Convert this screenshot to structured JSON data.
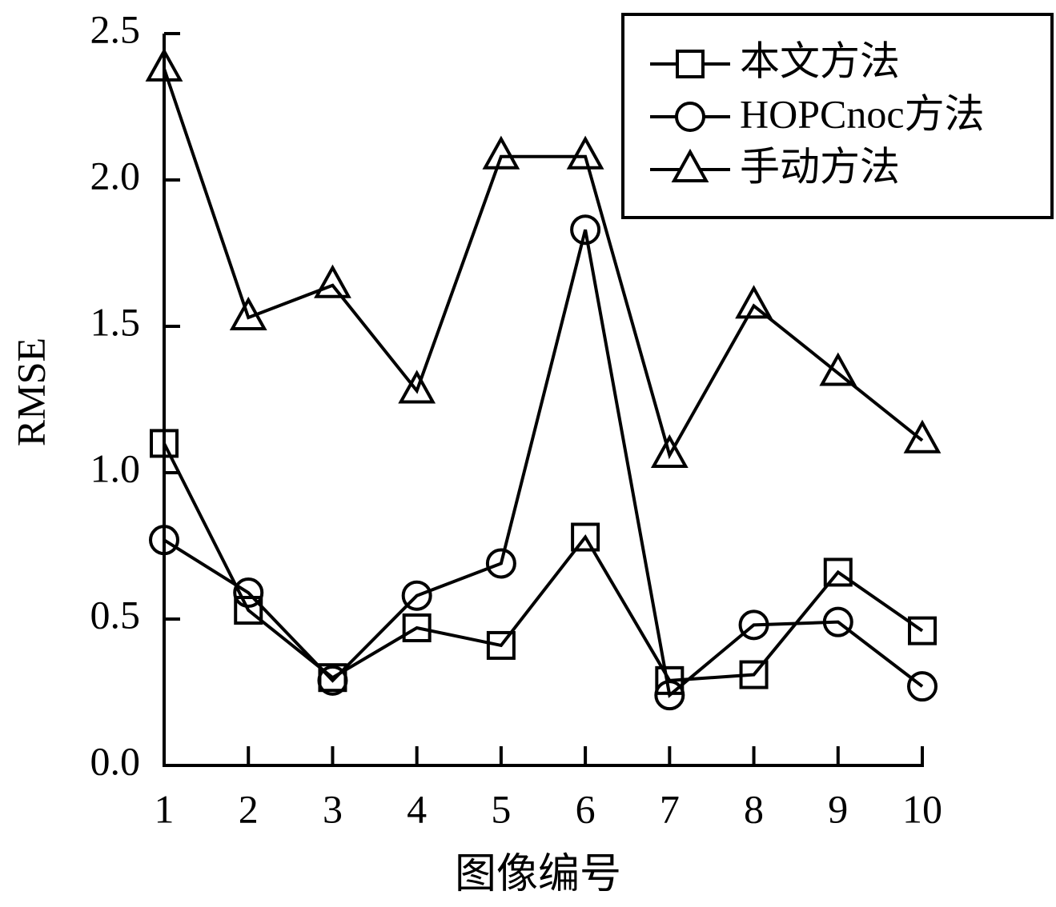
{
  "chart_data": {
    "type": "line",
    "x_label": "图像编号",
    "y_label": "RMSE",
    "x": [
      1,
      2,
      3,
      4,
      5,
      6,
      7,
      8,
      9,
      10
    ],
    "xlim": [
      1,
      10
    ],
    "xticks": [
      1,
      2,
      3,
      4,
      5,
      6,
      7,
      8,
      9,
      10
    ],
    "ylim": [
      0,
      2.5
    ],
    "yticks": [
      {
        "value": 0,
        "label": "0.0"
      },
      0.5,
      {
        "value": 1,
        "label": "1.0"
      },
      1.5,
      {
        "value": 2,
        "label": "2.0"
      },
      2.5
    ],
    "legend": "upper right",
    "series": [
      {
        "name": "本文方法",
        "color": "#000000",
        "marker": "square",
        "values": [
          1.1,
          0.53,
          0.3,
          0.47,
          0.41,
          0.78,
          0.29,
          0.31,
          0.66,
          0.46
        ]
      },
      {
        "name": "HOPCnoc方法",
        "color": "#000000",
        "marker": "circle",
        "values": [
          0.77,
          0.59,
          0.29,
          0.58,
          0.69,
          1.83,
          0.24,
          0.48,
          0.49,
          0.27
        ]
      },
      {
        "name": "手动方法",
        "color": "#000000",
        "marker": "triangle",
        "values": [
          2.38,
          1.53,
          1.64,
          1.28,
          2.08,
          2.08,
          1.06,
          1.57,
          1.34,
          1.11
        ]
      }
    ]
  }
}
